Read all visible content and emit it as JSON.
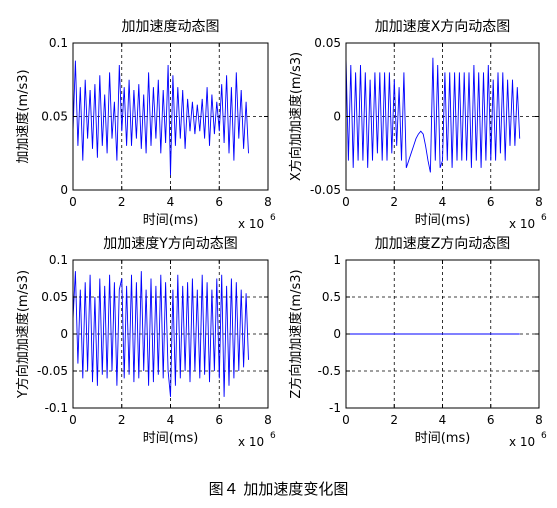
{
  "caption": "图４ 加加速度变化图",
  "chart_data": [
    {
      "type": "line",
      "title": "加加速度动态图",
      "xlabel": "时间(ms)",
      "ylabel": "加加速度(m/s3)",
      "x_multiplier": "x 10",
      "x_multiplier_exp": "6",
      "xlim": [
        0,
        8
      ],
      "ylim": [
        0,
        0.1
      ],
      "xticks": [
        0,
        2,
        4,
        6,
        8
      ],
      "yticks": [
        0,
        0.05,
        0.1
      ],
      "xtick_labels": [
        "0",
        "2",
        "4",
        "6",
        "8"
      ],
      "ytick_labels": [
        "0",
        "0.05",
        "0.1"
      ],
      "grid": true,
      "line_color": "#0000ff",
      "x": [
        0,
        0.1,
        0.2,
        0.3,
        0.4,
        0.5,
        0.6,
        0.7,
        0.8,
        0.9,
        1.0,
        1.1,
        1.2,
        1.3,
        1.4,
        1.5,
        1.6,
        1.7,
        1.8,
        1.9,
        2.0,
        2.1,
        2.2,
        2.3,
        2.4,
        2.5,
        2.6,
        2.7,
        2.8,
        2.9,
        3.0,
        3.1,
        3.2,
        3.3,
        3.4,
        3.5,
        3.6,
        3.7,
        3.8,
        3.9,
        4.0,
        4.1,
        4.2,
        4.3,
        4.4,
        4.5,
        4.6,
        4.7,
        4.8,
        4.9,
        5.0,
        5.1,
        5.2,
        5.3,
        5.4,
        5.5,
        5.6,
        5.7,
        5.8,
        5.9,
        6.0,
        6.1,
        6.2,
        6.3,
        6.4,
        6.5,
        6.6,
        6.7,
        6.8,
        6.9,
        7.0,
        7.1,
        7.2
      ],
      "y": [
        0.04,
        0.088,
        0.03,
        0.07,
        0.02,
        0.075,
        0.035,
        0.068,
        0.028,
        0.072,
        0.022,
        0.078,
        0.03,
        0.065,
        0.025,
        0.08,
        0.035,
        0.06,
        0.02,
        0.085,
        0.04,
        0.07,
        0.03,
        0.075,
        0.03,
        0.068,
        0.035,
        0.072,
        0.028,
        0.065,
        0.025,
        0.08,
        0.03,
        0.07,
        0.035,
        0.075,
        0.025,
        0.068,
        0.032,
        0.085,
        0.01,
        0.078,
        0.03,
        0.07,
        0.035,
        0.068,
        0.028,
        0.062,
        0.04,
        0.06,
        0.038,
        0.058,
        0.04,
        0.062,
        0.035,
        0.07,
        0.03,
        0.065,
        0.038,
        0.06,
        0.04,
        0.072,
        0.032,
        0.078,
        0.025,
        0.07,
        0.02,
        0.08,
        0.035,
        0.068,
        0.028,
        0.06,
        0.025
      ]
    },
    {
      "type": "line",
      "title": "加加速度X方向动态图",
      "xlabel": "时间(ms)",
      "ylabel": "X方向加加速度(m/s3)",
      "x_multiplier": "x 10",
      "x_multiplier_exp": "6",
      "xlim": [
        0,
        8
      ],
      "ylim": [
        -0.05,
        0.05
      ],
      "xticks": [
        0,
        2,
        4,
        6,
        8
      ],
      "yticks": [
        -0.05,
        0,
        0.05
      ],
      "xtick_labels": [
        "0",
        "2",
        "4",
        "6",
        "8"
      ],
      "ytick_labels": [
        "-0.05",
        "0",
        "0.05"
      ],
      "grid": true,
      "line_color": "#0000ff",
      "x": [
        0,
        0.1,
        0.2,
        0.3,
        0.4,
        0.5,
        0.6,
        0.7,
        0.8,
        0.9,
        1.0,
        1.1,
        1.2,
        1.3,
        1.4,
        1.5,
        1.6,
        1.7,
        1.8,
        1.9,
        2.0,
        2.1,
        2.2,
        2.3,
        2.4,
        2.5,
        2.6,
        2.7,
        2.8,
        2.9,
        3.0,
        3.1,
        3.2,
        3.3,
        3.4,
        3.5,
        3.6,
        3.7,
        3.8,
        3.9,
        4.0,
        4.1,
        4.2,
        4.3,
        4.4,
        4.5,
        4.6,
        4.7,
        4.8,
        4.9,
        5.0,
        5.1,
        5.2,
        5.3,
        5.4,
        5.5,
        5.6,
        5.7,
        5.8,
        5.9,
        6.0,
        6.1,
        6.2,
        6.3,
        6.4,
        6.5,
        6.6,
        6.7,
        6.8,
        6.9,
        7.0,
        7.1,
        7.2
      ],
      "y": [
        0.04,
        -0.03,
        0.035,
        -0.035,
        0.03,
        -0.03,
        0.035,
        -0.03,
        0.03,
        -0.035,
        0.025,
        -0.03,
        0.03,
        -0.025,
        0.03,
        -0.03,
        0.03,
        -0.03,
        0.03,
        -0.025,
        0.025,
        -0.02,
        0.02,
        -0.03,
        0.03,
        -0.035,
        -0.03,
        -0.025,
        -0.02,
        -0.015,
        -0.012,
        -0.01,
        -0.012,
        -0.02,
        -0.03,
        -0.038,
        0.04,
        -0.03,
        0.035,
        -0.035,
        -0.03,
        0.03,
        -0.03,
        0.03,
        -0.035,
        0.03,
        -0.03,
        0.03,
        -0.03,
        0.03,
        -0.03,
        0.03,
        -0.035,
        0.035,
        -0.03,
        0.03,
        -0.035,
        0.03,
        -0.03,
        0.035,
        -0.03,
        0.025,
        -0.03,
        0.03,
        -0.025,
        0.03,
        -0.03,
        0.025,
        -0.02,
        0.025,
        -0.02,
        0.02,
        -0.015
      ]
    },
    {
      "type": "line",
      "title": "加加速度Y方向动态图",
      "xlabel": "时间(ms)",
      "ylabel": "Y方向加加速度(m/s3)",
      "x_multiplier": "x 10",
      "x_multiplier_exp": "6",
      "xlim": [
        0,
        8
      ],
      "ylim": [
        -0.1,
        0.1
      ],
      "xticks": [
        0,
        2,
        4,
        6,
        8
      ],
      "yticks": [
        -0.1,
        -0.05,
        0,
        0.05,
        0.1
      ],
      "xtick_labels": [
        "0",
        "2",
        "4",
        "6",
        "8"
      ],
      "ytick_labels": [
        "-0.1",
        "-0.05",
        "0",
        "0.05",
        "0.1"
      ],
      "grid": true,
      "line_color": "#0000ff",
      "x": [
        0,
        0.1,
        0.2,
        0.3,
        0.4,
        0.5,
        0.6,
        0.7,
        0.8,
        0.9,
        1.0,
        1.1,
        1.2,
        1.3,
        1.4,
        1.5,
        1.6,
        1.7,
        1.8,
        1.9,
        2.0,
        2.1,
        2.2,
        2.3,
        2.4,
        2.5,
        2.6,
        2.7,
        2.8,
        2.9,
        3.0,
        3.1,
        3.2,
        3.3,
        3.4,
        3.5,
        3.6,
        3.7,
        3.8,
        3.9,
        4.0,
        4.1,
        4.2,
        4.3,
        4.4,
        4.5,
        4.6,
        4.7,
        4.8,
        4.9,
        5.0,
        5.1,
        5.2,
        5.3,
        5.4,
        5.5,
        5.6,
        5.7,
        5.8,
        5.9,
        6.0,
        6.1,
        6.2,
        6.3,
        6.4,
        6.5,
        6.6,
        6.7,
        6.8,
        6.9,
        7.0,
        7.1,
        7.2
      ],
      "y": [
        0.02,
        0.085,
        -0.04,
        0.06,
        -0.06,
        0.07,
        -0.05,
        0.08,
        -0.065,
        0.05,
        -0.07,
        0.075,
        -0.055,
        0.065,
        -0.06,
        0.08,
        -0.05,
        0.07,
        -0.07,
        0.06,
        0.075,
        -0.06,
        0.065,
        -0.055,
        0.08,
        -0.065,
        0.07,
        -0.06,
        0.085,
        -0.05,
        0.06,
        -0.07,
        0.075,
        -0.065,
        0.065,
        -0.055,
        0.08,
        -0.06,
        0.07,
        -0.05,
        -0.085,
        0.06,
        -0.07,
        0.08,
        -0.06,
        0.065,
        -0.05,
        0.07,
        -0.065,
        0.075,
        -0.05,
        0.06,
        -0.06,
        0.08,
        -0.055,
        0.07,
        -0.065,
        0.06,
        -0.05,
        0.075,
        -0.06,
        0.08,
        -0.085,
        0.065,
        -0.07,
        0.075,
        -0.06,
        0.07,
        -0.05,
        0.06,
        -0.045,
        0.055,
        -0.035
      ]
    },
    {
      "type": "line",
      "title": "加加速度Z方向动态图",
      "xlabel": "时间(ms)",
      "ylabel": "Z方向加加速度(m/s3)",
      "x_multiplier": "x 10",
      "x_multiplier_exp": "6",
      "xlim": [
        0,
        8
      ],
      "ylim": [
        -1,
        1
      ],
      "xticks": [
        0,
        2,
        4,
        6,
        8
      ],
      "yticks": [
        -1,
        -0.5,
        0,
        0.5,
        1
      ],
      "xtick_labels": [
        "0",
        "2",
        "4",
        "6",
        "8"
      ],
      "ytick_labels": [
        "-1",
        "-0.5",
        "0",
        "0.5",
        "1"
      ],
      "grid": true,
      "line_color": "#0000ff",
      "x": [
        0,
        7.2
      ],
      "y": [
        0,
        0
      ]
    }
  ]
}
